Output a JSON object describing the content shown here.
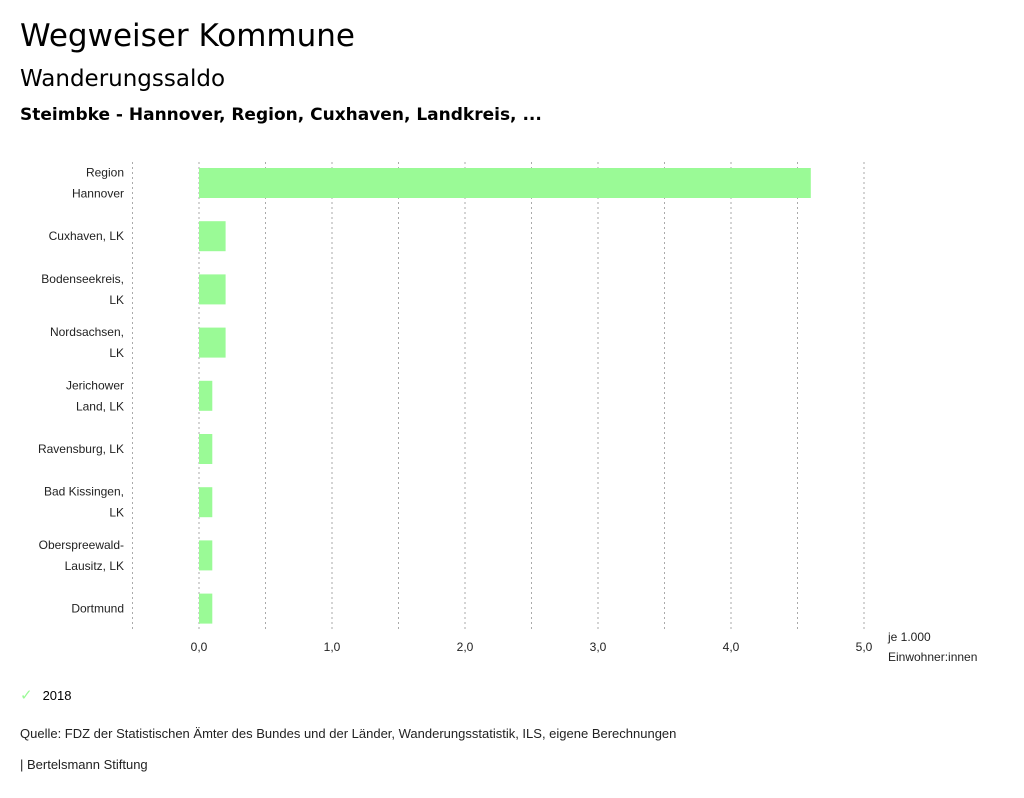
{
  "header": {
    "title": "Wegweiser Kommune",
    "subtitle": "Wanderungssaldo",
    "region": "Steimbke - Hannover, Region, Cuxhaven, Landkreis, ..."
  },
  "chart_data": {
    "type": "bar",
    "orientation": "horizontal",
    "categories": [
      [
        "Region",
        "Hannover"
      ],
      [
        "Cuxhaven, LK"
      ],
      [
        "Bodenseekreis,",
        "LK"
      ],
      [
        "Nordsachsen,",
        "LK"
      ],
      [
        "Jerichower",
        "Land, LK"
      ],
      [
        "Ravensburg, LK"
      ],
      [
        "Bad Kissingen,",
        "LK"
      ],
      [
        "Oberspreewald-",
        "Lausitz, LK"
      ],
      [
        "Dortmund"
      ]
    ],
    "series": [
      {
        "name": "2018",
        "values": [
          4.6,
          0.2,
          0.2,
          0.2,
          0.1,
          0.1,
          0.1,
          0.1,
          0.1
        ],
        "color": "#9afa96"
      }
    ],
    "xlim": [
      -0.5,
      5.0
    ],
    "xticks": [
      0,
      1,
      2,
      3,
      4,
      5
    ],
    "xtick_labels": [
      "0,0",
      "1,0",
      "2,0",
      "3,0",
      "4,0",
      "5,0"
    ],
    "xlabel": [
      "je 1.000",
      "Einwohner:innen"
    ],
    "grid": true,
    "legend": "bottom-left"
  },
  "legend": {
    "label": "2018"
  },
  "footer": {
    "source": "Quelle: FDZ der Statistischen Ämter des Bundes und der Länder, Wanderungsstatistik, ILS, eigene Berechnungen",
    "brand": "| Bertelsmann Stiftung"
  }
}
